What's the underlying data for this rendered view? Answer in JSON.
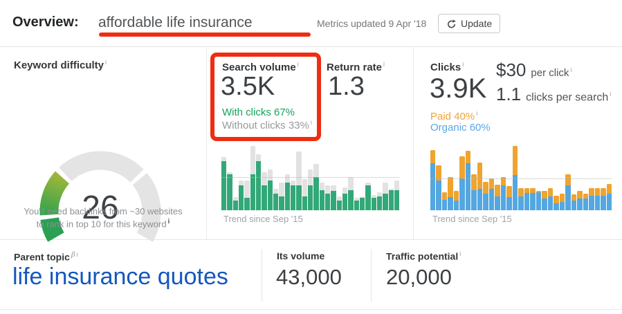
{
  "ui": {
    "info_mark": "i"
  },
  "header": {
    "title_label": "Overview:",
    "keyword": "affordable life insurance",
    "metrics_updated": "Metrics updated 9 Apr '18",
    "update_button": "Update"
  },
  "annotation_color": "#ee2d12",
  "keyword_difficulty": {
    "label": "Keyword difficulty",
    "value": 26,
    "caption_line1": "You'll need backlinks from ~30 websites",
    "caption_line2": "to rank in top 10 for this keyword",
    "gauge": {
      "start_angle": 210,
      "end_angle": -30,
      "radius": 74,
      "stroke_width": 27,
      "empty_color": "#e4e4e4",
      "gradient": {
        "from": "#2fa24e",
        "to": "#9cb63a"
      },
      "segments": [
        {
          "from": 0,
          "to": 9.2,
          "color": "#2aa052"
        },
        {
          "from": 11,
          "to": 30,
          "color": "gradient"
        },
        {
          "from": 32,
          "to": 69,
          "color": "#e4e4e4"
        },
        {
          "from": 71,
          "to": 100,
          "color": "#e4e4e4"
        }
      ]
    }
  },
  "search_volume": {
    "label": "Search volume",
    "value": "3.5K",
    "with_clicks": "With clicks 67%",
    "without_clicks": "Without clicks 33%",
    "trend_label": "Trend since Sep '15"
  },
  "return_rate": {
    "label": "Return rate",
    "value": "1.3"
  },
  "clicks": {
    "label": "Clicks",
    "value": "3.9K",
    "cpc_value": "$30",
    "cpc_label": "per click",
    "cps_value": "1.1",
    "cps_label": "clicks per search",
    "paid": "Paid 40%",
    "organic": "Organic 60%",
    "trend_label": "Trend since Sep '15"
  },
  "parent_topic": {
    "label": "Parent topic",
    "beta_mark": "β",
    "value": "life insurance quotes",
    "its_volume_label": "Its volume",
    "its_volume": "43,000",
    "traffic_potential_label": "Traffic potential",
    "traffic_potential": "20,000"
  },
  "chart_data": [
    {
      "type": "gauge",
      "title": "Keyword difficulty",
      "value": 26,
      "range": [
        0,
        100
      ],
      "segment_boundaries": [
        10,
        30,
        70
      ],
      "filled_to": 30,
      "colors": {
        "low": "#2aa052",
        "mid": "#9cb63a",
        "empty": "#e4e4e4"
      }
    },
    {
      "type": "bar",
      "title": "Search volume trend",
      "xlabel": "Trend since Sep '15",
      "stacked": true,
      "unit": "percent_of_chart_height",
      "threshold_pct": 51,
      "series": [
        {
          "name": "With clicks",
          "color": "#32a878",
          "values": [
            76,
            56,
            15,
            39,
            19,
            56,
            76,
            39,
            46,
            26,
            22,
            43,
            39,
            39,
            22,
            39,
            52,
            31,
            26,
            30,
            15,
            26,
            31,
            15,
            19,
            39,
            19,
            22,
            26,
            31,
            31
          ]
        },
        {
          "name": "Without clicks",
          "color": "#e2e2e2",
          "values": [
            7,
            3,
            5,
            7,
            27,
            44,
            11,
            20,
            17,
            7,
            21,
            13,
            7,
            52,
            26,
            24,
            20,
            12,
            13,
            9,
            7,
            9,
            21,
            4,
            3,
            4,
            5,
            6,
            17,
            2,
            15
          ]
        }
      ]
    },
    {
      "type": "bar",
      "title": "Clicks trend",
      "xlabel": "Trend since Sep '15",
      "stacked": true,
      "unit": "percent_of_chart_height",
      "threshold_pct": 48,
      "series": [
        {
          "name": "Organic",
          "color": "#54a7e0",
          "values": [
            73,
            46,
            16,
            20,
            15,
            49,
            73,
            31,
            33,
            26,
            33,
            22,
            39,
            20,
            55,
            22,
            27,
            27,
            28,
            18,
            22,
            11,
            13,
            39,
            15,
            18,
            18,
            23,
            23,
            23,
            26
          ]
        },
        {
          "name": "Paid",
          "color": "#efa42f",
          "values": [
            21,
            24,
            12,
            32,
            15,
            35,
            20,
            25,
            41,
            18,
            17,
            18,
            13,
            18,
            45,
            12,
            7,
            7,
            2,
            12,
            12,
            12,
            13,
            17,
            10,
            12,
            8,
            11,
            11,
            11,
            15
          ]
        }
      ]
    }
  ]
}
